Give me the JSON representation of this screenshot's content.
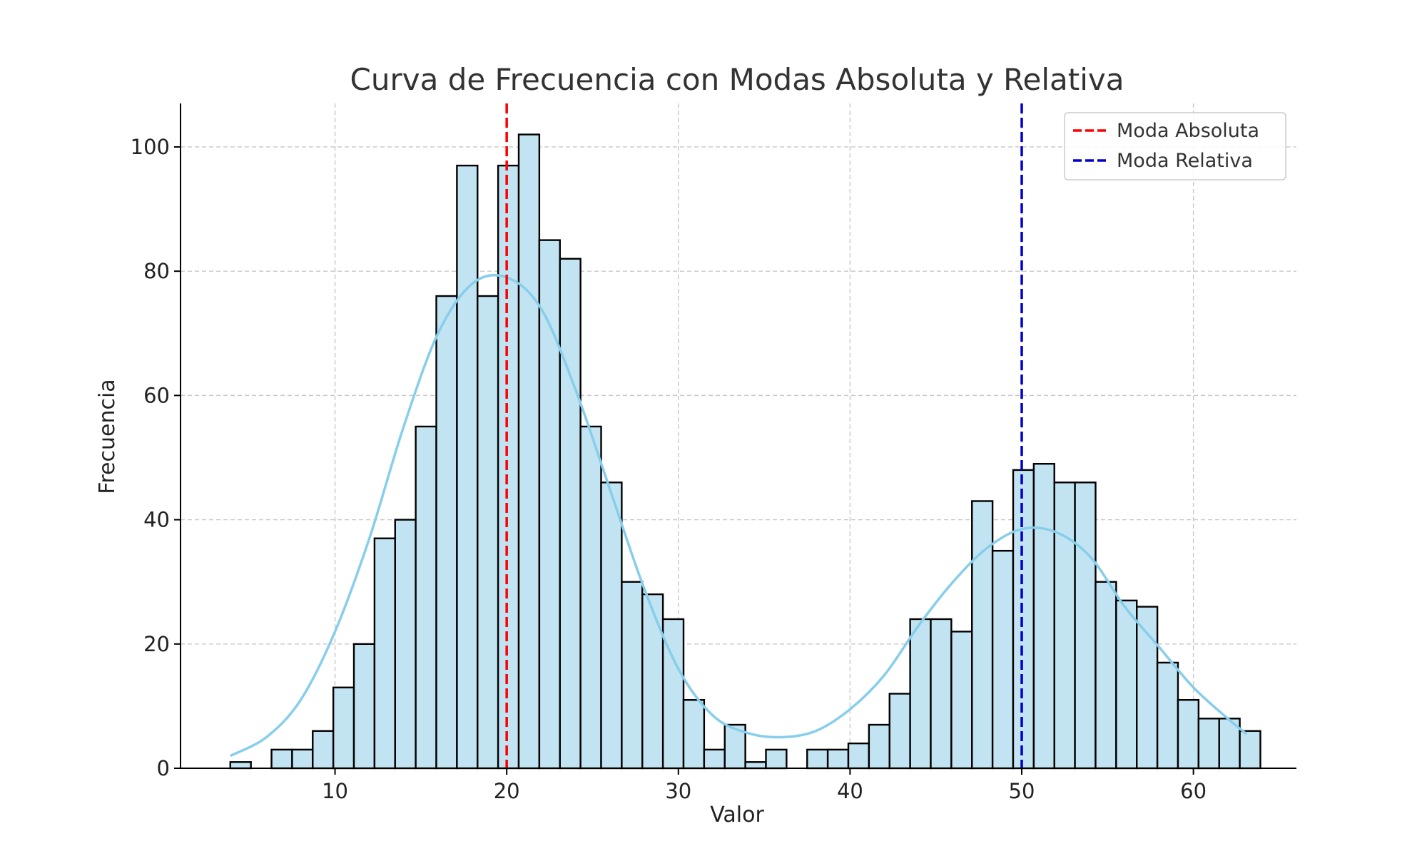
{
  "chart_data": {
    "type": "bar",
    "subtype": "histogram",
    "title": "Curva de Frecuencia con Modas Absoluta y Relativa",
    "xlabel": "Valor",
    "ylabel": "Frecuencia",
    "xlim": [
      1,
      66
    ],
    "ylim": [
      0,
      107
    ],
    "xticks": [
      10,
      20,
      30,
      40,
      50,
      60
    ],
    "yticks": [
      0,
      20,
      40,
      60,
      80,
      100
    ],
    "grid": true,
    "legend_position": "top-right",
    "bin_start": 3.9,
    "bin_width": 1.2,
    "counts": [
      1,
      0,
      3,
      3,
      6,
      13,
      20,
      37,
      40,
      55,
      76,
      97,
      76,
      97,
      102,
      85,
      82,
      55,
      46,
      30,
      28,
      24,
      11,
      3,
      7,
      1,
      3,
      0,
      3,
      3,
      4,
      7,
      12,
      24,
      24,
      22,
      43,
      35,
      48,
      49,
      46,
      46,
      30,
      27,
      26,
      17,
      11,
      8,
      8,
      6
    ],
    "kde_curve": {
      "color": "#87ceeb",
      "x": [
        3.9,
        6,
        8,
        10,
        12,
        14,
        16,
        18,
        20,
        22,
        24,
        26,
        28,
        30,
        32,
        34,
        36,
        38,
        40,
        42,
        44,
        46,
        48,
        50,
        52,
        54,
        56,
        58,
        60,
        62,
        63.1
      ],
      "y": [
        2,
        5,
        11,
        22,
        37,
        55,
        70,
        78,
        79,
        74,
        61,
        45,
        29,
        16,
        8.5,
        5.7,
        5,
        6,
        9.5,
        15,
        23,
        30,
        35.5,
        38.5,
        38,
        34,
        26,
        19.5,
        13,
        8,
        5.5
      ]
    },
    "vertical_lines": [
      {
        "label": "Moda Absoluta",
        "x": 20.0,
        "color": "#ff0000",
        "style": "dashed"
      },
      {
        "label": "Moda Relativa",
        "x": 50.0,
        "color": "#0000cc",
        "style": "dashed"
      }
    ]
  }
}
